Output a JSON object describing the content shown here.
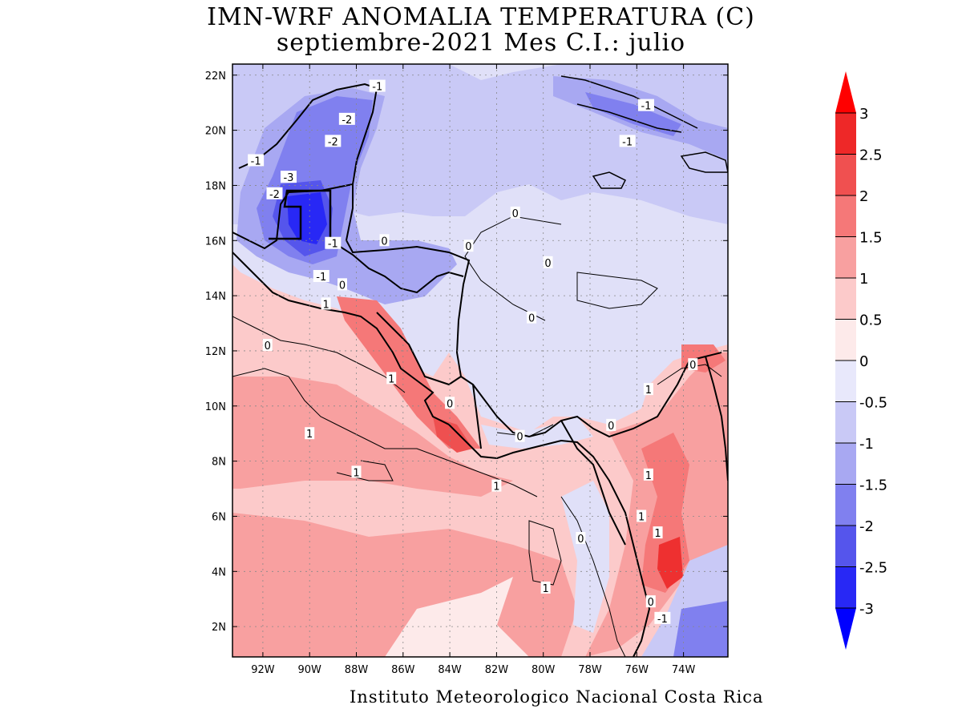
{
  "title": {
    "line1": "IMN-WRF  ANOMALIA TEMPERATURA (C)",
    "line2": "septiembre-2021 Mes C.I.: julio"
  },
  "credit": "Instituto Meteorologico Nacional Costa Rica",
  "map": {
    "lon_range": [
      -93.3,
      -72.1
    ],
    "lat_range": [
      0.9,
      22.4
    ],
    "lat_ticks": [
      "22N",
      "20N",
      "18N",
      "16N",
      "14N",
      "12N",
      "10N",
      "8N",
      "6N",
      "4N",
      "2N"
    ],
    "lat_values": [
      22,
      20,
      18,
      16,
      14,
      12,
      10,
      8,
      6,
      4,
      2
    ],
    "lon_ticks": [
      "92W",
      "90W",
      "88W",
      "86W",
      "84W",
      "82W",
      "80W",
      "78W",
      "76W",
      "74W"
    ],
    "lon_values": [
      -92,
      -90,
      -88,
      -86,
      -84,
      -82,
      -80,
      -78,
      -76,
      -74
    ],
    "grid_lines": true
  },
  "colorbar": {
    "labels": [
      "3",
      "2.5",
      "2",
      "1.5",
      "1",
      "0.5",
      "0",
      "-0.5",
      "-1",
      "-1.5",
      "-2",
      "-2.5",
      "-3"
    ],
    "colors_top_to_bottom": [
      "#ff0000",
      "#ee2828",
      "#f05050",
      "#f57878",
      "#f8a0a0",
      "#fccaca",
      "#fdeaea",
      "#e8e8fb",
      "#c9c9f6",
      "#a8a8f2",
      "#8080ef",
      "#5555ec",
      "#2828f5",
      "#0000ff"
    ]
  },
  "contour_labels": [
    {
      "text": "-1",
      "lon": -87.1,
      "lat": 21.6
    },
    {
      "text": "-2",
      "lon": -88.4,
      "lat": 20.4
    },
    {
      "text": "-2",
      "lon": -89.0,
      "lat": 19.6
    },
    {
      "text": "-1",
      "lon": -92.3,
      "lat": 18.9
    },
    {
      "text": "-3",
      "lon": -90.9,
      "lat": 18.3
    },
    {
      "text": "-2",
      "lon": -91.5,
      "lat": 17.7
    },
    {
      "text": "-1",
      "lon": -89.0,
      "lat": 15.9
    },
    {
      "text": "0",
      "lon": -86.8,
      "lat": 16.0
    },
    {
      "text": "-1",
      "lon": -89.5,
      "lat": 14.7
    },
    {
      "text": "0",
      "lon": -88.6,
      "lat": 14.4
    },
    {
      "text": "1",
      "lon": -89.3,
      "lat": 13.7
    },
    {
      "text": "-1",
      "lon": -75.6,
      "lat": 20.9
    },
    {
      "text": "-1",
      "lon": -76.4,
      "lat": 19.6
    },
    {
      "text": "0",
      "lon": -81.2,
      "lat": 17.0
    },
    {
      "text": "0",
      "lon": -83.2,
      "lat": 15.8
    },
    {
      "text": "0",
      "lon": -79.8,
      "lat": 15.2
    },
    {
      "text": "0",
      "lon": -80.5,
      "lat": 13.2
    },
    {
      "text": "0",
      "lon": -91.8,
      "lat": 12.2
    },
    {
      "text": "1",
      "lon": -86.5,
      "lat": 11.0
    },
    {
      "text": "0",
      "lon": -84.0,
      "lat": 10.1
    },
    {
      "text": "1",
      "lon": -90.0,
      "lat": 9.0
    },
    {
      "text": "1",
      "lon": -88.0,
      "lat": 7.6
    },
    {
      "text": "1",
      "lon": -82.0,
      "lat": 7.1
    },
    {
      "text": "0",
      "lon": -81.0,
      "lat": 8.9
    },
    {
      "text": "0",
      "lon": -77.1,
      "lat": 9.3
    },
    {
      "text": "1",
      "lon": -75.5,
      "lat": 10.6
    },
    {
      "text": "0",
      "lon": -73.6,
      "lat": 11.5
    },
    {
      "text": "1",
      "lon": -75.5,
      "lat": 7.5
    },
    {
      "text": "1",
      "lon": -75.8,
      "lat": 6.0
    },
    {
      "text": "1",
      "lon": -75.1,
      "lat": 5.4
    },
    {
      "text": "0",
      "lon": -78.4,
      "lat": 5.2
    },
    {
      "text": "1",
      "lon": -79.9,
      "lat": 3.4
    },
    {
      "text": "0",
      "lon": -75.4,
      "lat": 2.9
    },
    {
      "text": "-1",
      "lon": -74.9,
      "lat": 2.3
    }
  ]
}
